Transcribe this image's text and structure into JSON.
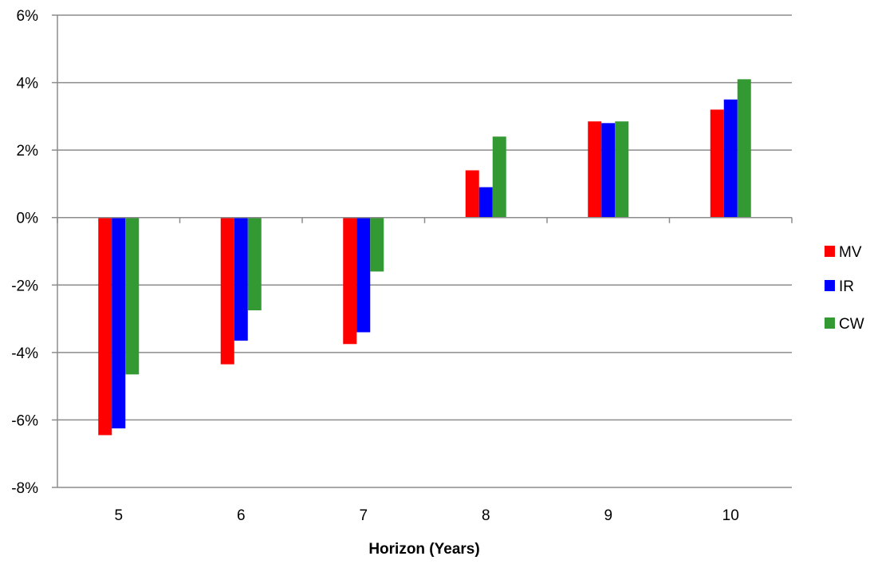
{
  "chart_data": {
    "type": "bar",
    "title": "",
    "xlabel": "Horizon (Years)",
    "ylabel": "",
    "categories": [
      "5",
      "6",
      "7",
      "8",
      "9",
      "10"
    ],
    "series": [
      {
        "name": "MV",
        "color": "#ff0000",
        "values": [
          -6.45,
          -4.35,
          -3.75,
          1.4,
          2.85,
          3.2
        ]
      },
      {
        "name": "IR",
        "color": "#0000ff",
        "values": [
          -6.25,
          -3.65,
          -3.4,
          0.9,
          2.8,
          3.5
        ]
      },
      {
        "name": "CW",
        "color": "#339933",
        "values": [
          -4.65,
          -2.75,
          -1.6,
          2.4,
          2.85,
          4.1
        ]
      }
    ],
    "ylim": [
      -8,
      6
    ],
    "yticks": [
      6,
      4,
      2,
      0,
      -2,
      -4,
      -6,
      -8
    ],
    "ytick_labels": [
      "6%",
      "4%",
      "2%",
      "0%",
      "-2%",
      "-4%",
      "-6%",
      "-8%"
    ],
    "grid": true,
    "legend": "right"
  }
}
